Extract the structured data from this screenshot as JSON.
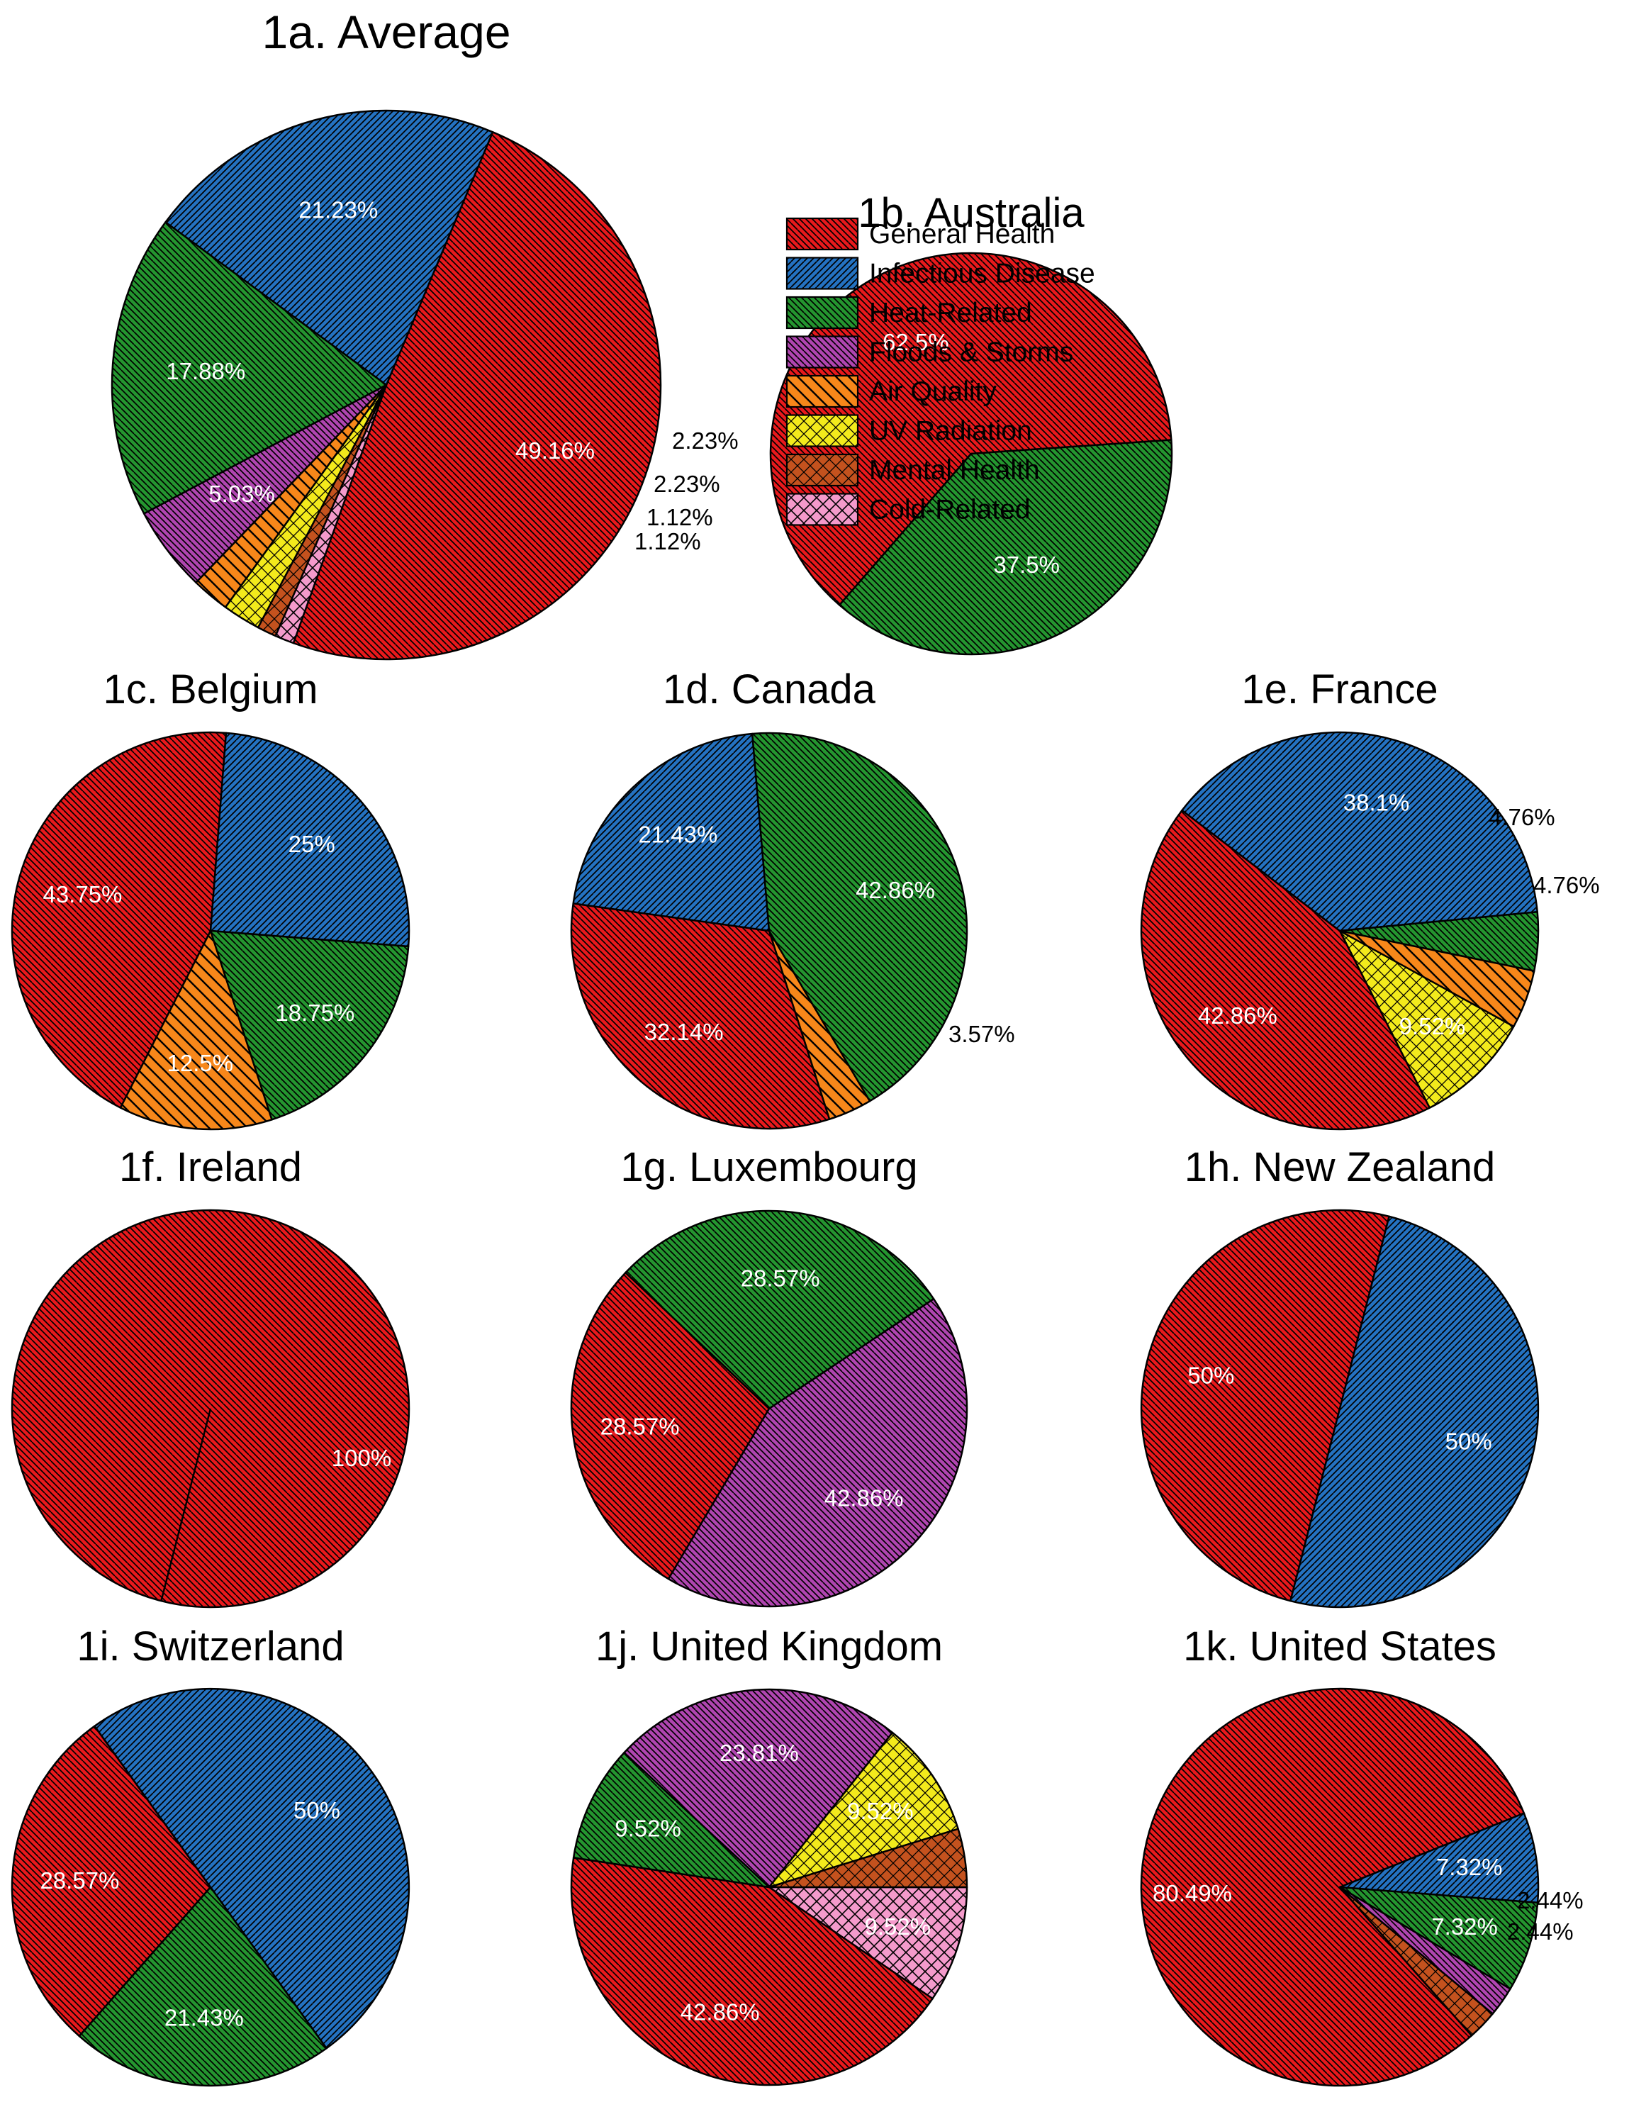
{
  "categories": [
    {
      "name": "General Health",
      "color": "#e8191c",
      "pattern": "hatch-b"
    },
    {
      "name": "Infectious Disease",
      "color": "#2472c1",
      "pattern": "hatch-f"
    },
    {
      "name": "Heat-Related",
      "color": "#24952f",
      "pattern": "hatch-b"
    },
    {
      "name": "Floods & Storms",
      "color": "#b045b0",
      "pattern": "hatch-b"
    },
    {
      "name": "Air Quality",
      "color": "#f7871a",
      "pattern": "hatch-wide"
    },
    {
      "name": "UV Radiation",
      "color": "#f3ea1c",
      "pattern": "cross"
    },
    {
      "name": "Mental Health",
      "color": "#c4521e",
      "pattern": "cross"
    },
    {
      "name": "Cold-Related",
      "color": "#f49acb",
      "pattern": "cross-wide"
    }
  ],
  "chart_data": [
    {
      "type": "pie",
      "id": "1a",
      "title": "1a. Average",
      "labels": [
        "General Health",
        "Infectious Disease",
        "Heat-Related",
        "Floods & Storms",
        "Air Quality",
        "UV Radiation",
        "Mental Health",
        "Cold-Related"
      ],
      "values": [
        49.16,
        21.23,
        17.88,
        5.03,
        2.23,
        2.23,
        1.12,
        1.12
      ],
      "value_labels": [
        "49.16%",
        "21.23%",
        "17.88%",
        "5.03%",
        "2.23%",
        "2.23%",
        "1.12%",
        "1.12%"
      ]
    },
    {
      "type": "pie",
      "id": "1b",
      "title": "1b. Australia",
      "labels": [
        "General Health",
        "Heat-Related"
      ],
      "values": [
        62.5,
        37.5
      ],
      "value_labels": [
        "62.5%",
        "37.5%"
      ]
    },
    {
      "type": "pie",
      "id": "1c",
      "title": "1c. Belgium",
      "labels": [
        "General Health",
        "Infectious Disease",
        "Heat-Related",
        "Air Quality"
      ],
      "values": [
        43.75,
        25,
        18.75,
        12.5
      ],
      "value_labels": [
        "43.75%",
        "25%",
        "18.75%",
        "12.5%"
      ]
    },
    {
      "type": "pie",
      "id": "1d",
      "title": "1d. Canada",
      "labels": [
        "General Health",
        "Infectious Disease",
        "Heat-Related",
        "Air Quality"
      ],
      "values": [
        32.14,
        21.43,
        42.86,
        3.57
      ],
      "value_labels": [
        "32.14%",
        "21.43%",
        "42.86%",
        "3.57%"
      ]
    },
    {
      "type": "pie",
      "id": "1e",
      "title": "1e. France",
      "labels": [
        "General Health",
        "Infectious Disease",
        "Heat-Related",
        "Air Quality",
        "UV Radiation"
      ],
      "values": [
        42.86,
        38.1,
        4.76,
        4.76,
        9.52
      ],
      "value_labels": [
        "42.86%",
        "38.1%",
        "4.76%",
        "4.76%",
        "9.52%"
      ]
    },
    {
      "type": "pie",
      "id": "1f",
      "title": "1f. Ireland",
      "labels": [
        "General Health"
      ],
      "values": [
        100
      ],
      "value_labels": [
        "100%"
      ]
    },
    {
      "type": "pie",
      "id": "1g",
      "title": "1g. Luxembourg",
      "labels": [
        "General Health",
        "Heat-Related",
        "Floods & Storms"
      ],
      "values": [
        28.57,
        28.57,
        42.86
      ],
      "value_labels": [
        "28.57%",
        "28.57%",
        "42.86%"
      ]
    },
    {
      "type": "pie",
      "id": "1h",
      "title": "1h. New Zealand",
      "labels": [
        "General Health",
        "Infectious Disease"
      ],
      "values": [
        50,
        50
      ],
      "value_labels": [
        "50%",
        "50%"
      ]
    },
    {
      "type": "pie",
      "id": "1i",
      "title": "1i. Switzerland",
      "labels": [
        "General Health",
        "Infectious Disease",
        "Heat-Related"
      ],
      "values": [
        28.57,
        50,
        21.43
      ],
      "value_labels": [
        "28.57%",
        "50%",
        "21.43%"
      ]
    },
    {
      "type": "pie",
      "id": "1j",
      "title": "1j. United Kingdom",
      "labels": [
        "General Health",
        "Heat-Related",
        "Floods & Storms",
        "UV Radiation",
        "Mental Health",
        "Cold-Related"
      ],
      "values": [
        42.86,
        9.52,
        23.81,
        9.52,
        4.76,
        9.52
      ],
      "value_labels": [
        "42.86%",
        "9.52%",
        "23.81%",
        "9.52%",
        "",
        "9.52%"
      ]
    },
    {
      "type": "pie",
      "id": "1k",
      "title": "1k. United States",
      "labels": [
        "General Health",
        "Infectious Disease",
        "Heat-Related",
        "Floods & Storms",
        "Mental Health"
      ],
      "values": [
        80.49,
        7.32,
        7.32,
        2.44,
        2.44
      ],
      "value_labels": [
        "80.49%",
        "7.32%",
        "7.32%",
        "2.44%",
        "2.44%"
      ]
    }
  ]
}
